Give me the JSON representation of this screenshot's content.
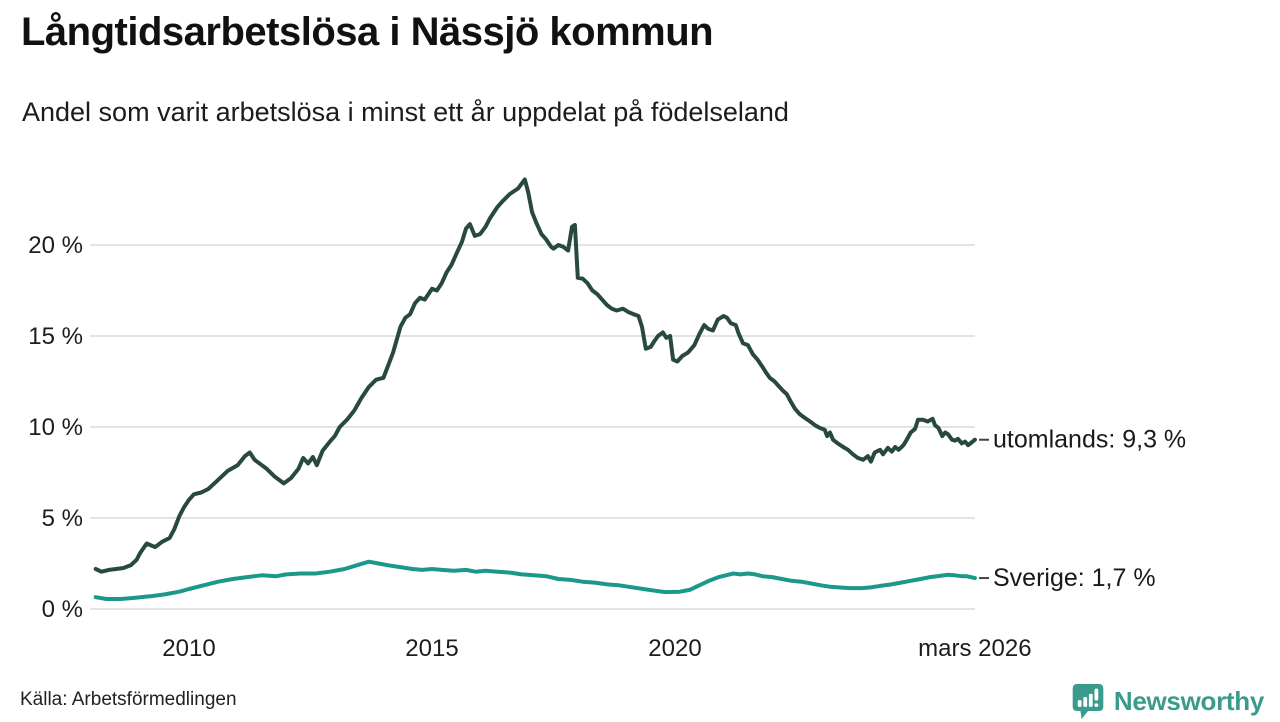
{
  "header": {
    "title": "Långtidsarbetslösa i Nässjö kommun",
    "subtitle": "Andel som varit arbetslösa i minst ett år uppdelat på födelseland"
  },
  "footer": {
    "source": "Källa: Arbetsförmedlingen",
    "brand": "Newsworthy"
  },
  "colors": {
    "utomlands_line": "#284a3e",
    "sverige_line": "#1a998b",
    "gridline": "#e3e3e3",
    "axis_text": "#1d1d1d",
    "label_text": "#1a1a1a",
    "connector": "#444444",
    "brand_teal": "#3a9a8b"
  },
  "chart_data": {
    "type": "line",
    "title": "Långtidsarbetslösa i Nässjö kommun",
    "subtitle": "Andel som varit arbetslösa i minst ett år uppdelat på födelseland",
    "xlabel": "",
    "ylabel": "",
    "grid": true,
    "legend_position": "end-of-line-labels",
    "x_axis": {
      "range": [
        2008.07,
        2026.17
      ],
      "ticks": [
        {
          "label": "2010",
          "year": 2010
        },
        {
          "label": "2015",
          "year": 2015
        },
        {
          "label": "2020",
          "year": 2020
        },
        {
          "label": "mars 2026",
          "year": 2026.17
        }
      ]
    },
    "y_axis": {
      "range": [
        0,
        24
      ],
      "ticks": [
        {
          "label": "0 %",
          "value": 0
        },
        {
          "label": "5 %",
          "value": 5
        },
        {
          "label": "10 %",
          "value": 10
        },
        {
          "label": "15 %",
          "value": 15
        },
        {
          "label": "20 %",
          "value": 20
        }
      ]
    },
    "series": [
      {
        "name": "utomlands",
        "end_label": "utomlands: 9,3 %",
        "end_value": 9.3,
        "color": "#284a3e",
        "points": [
          [
            2008.08,
            2.2
          ],
          [
            2008.2,
            2.05
          ],
          [
            2008.35,
            2.15
          ],
          [
            2008.5,
            2.2
          ],
          [
            2008.65,
            2.25
          ],
          [
            2008.8,
            2.4
          ],
          [
            2008.92,
            2.7
          ],
          [
            2009.0,
            3.1
          ],
          [
            2009.13,
            3.6
          ],
          [
            2009.3,
            3.4
          ],
          [
            2009.45,
            3.7
          ],
          [
            2009.6,
            3.9
          ],
          [
            2009.7,
            4.4
          ],
          [
            2009.8,
            5.1
          ],
          [
            2009.9,
            5.6
          ],
          [
            2010.0,
            6.0
          ],
          [
            2010.1,
            6.3
          ],
          [
            2010.25,
            6.4
          ],
          [
            2010.4,
            6.6
          ],
          [
            2010.6,
            7.1
          ],
          [
            2010.8,
            7.6
          ],
          [
            2011.0,
            7.9
          ],
          [
            2011.15,
            8.4
          ],
          [
            2011.25,
            8.6
          ],
          [
            2011.35,
            8.2
          ],
          [
            2011.5,
            7.9
          ],
          [
            2011.6,
            7.7
          ],
          [
            2011.75,
            7.3
          ],
          [
            2011.95,
            6.9
          ],
          [
            2012.1,
            7.2
          ],
          [
            2012.25,
            7.7
          ],
          [
            2012.35,
            8.3
          ],
          [
            2012.45,
            8.0
          ],
          [
            2012.55,
            8.35
          ],
          [
            2012.63,
            7.9
          ],
          [
            2012.75,
            8.7
          ],
          [
            2012.9,
            9.2
          ],
          [
            2013.0,
            9.5
          ],
          [
            2013.1,
            10.0
          ],
          [
            2013.25,
            10.4
          ],
          [
            2013.4,
            10.9
          ],
          [
            2013.55,
            11.6
          ],
          [
            2013.7,
            12.2
          ],
          [
            2013.85,
            12.6
          ],
          [
            2014.0,
            12.7
          ],
          [
            2014.1,
            13.4
          ],
          [
            2014.2,
            14.1
          ],
          [
            2014.35,
            15.5
          ],
          [
            2014.45,
            16.0
          ],
          [
            2014.55,
            16.2
          ],
          [
            2014.65,
            16.8
          ],
          [
            2014.75,
            17.1
          ],
          [
            2014.85,
            17.0
          ],
          [
            2015.0,
            17.6
          ],
          [
            2015.1,
            17.5
          ],
          [
            2015.2,
            17.9
          ],
          [
            2015.3,
            18.5
          ],
          [
            2015.4,
            18.9
          ],
          [
            2015.5,
            19.5
          ],
          [
            2015.62,
            20.2
          ],
          [
            2015.7,
            20.9
          ],
          [
            2015.78,
            21.15
          ],
          [
            2015.88,
            20.5
          ],
          [
            2015.99,
            20.6
          ],
          [
            2016.1,
            21.0
          ],
          [
            2016.2,
            21.5
          ],
          [
            2016.35,
            22.1
          ],
          [
            2016.45,
            22.4
          ],
          [
            2016.6,
            22.8
          ],
          [
            2016.77,
            23.1
          ],
          [
            2016.91,
            23.6
          ],
          [
            2016.98,
            22.9
          ],
          [
            2017.06,
            21.8
          ],
          [
            2017.15,
            21.2
          ],
          [
            2017.25,
            20.6
          ],
          [
            2017.35,
            20.3
          ],
          [
            2017.45,
            19.9
          ],
          [
            2017.5,
            19.8
          ],
          [
            2017.6,
            20.0
          ],
          [
            2017.7,
            19.9
          ],
          [
            2017.8,
            19.7
          ],
          [
            2017.88,
            21.0
          ],
          [
            2017.94,
            21.1
          ],
          [
            2018.0,
            18.2
          ],
          [
            2018.1,
            18.15
          ],
          [
            2018.2,
            17.9
          ],
          [
            2018.3,
            17.5
          ],
          [
            2018.4,
            17.3
          ],
          [
            2018.5,
            17.0
          ],
          [
            2018.6,
            16.7
          ],
          [
            2018.7,
            16.5
          ],
          [
            2018.8,
            16.4
          ],
          [
            2018.93,
            16.5
          ],
          [
            2019.05,
            16.3
          ],
          [
            2019.15,
            16.2
          ],
          [
            2019.25,
            16.1
          ],
          [
            2019.32,
            15.5
          ],
          [
            2019.4,
            14.3
          ],
          [
            2019.5,
            14.4
          ],
          [
            2019.57,
            14.7
          ],
          [
            2019.65,
            15.0
          ],
          [
            2019.75,
            15.2
          ],
          [
            2019.82,
            14.9
          ],
          [
            2019.9,
            15.0
          ],
          [
            2019.96,
            13.7
          ],
          [
            2020.05,
            13.6
          ],
          [
            2020.15,
            13.9
          ],
          [
            2020.27,
            14.1
          ],
          [
            2020.4,
            14.5
          ],
          [
            2020.5,
            15.1
          ],
          [
            2020.6,
            15.6
          ],
          [
            2020.68,
            15.4
          ],
          [
            2020.78,
            15.3
          ],
          [
            2020.88,
            15.9
          ],
          [
            2021.0,
            16.1
          ],
          [
            2021.07,
            16.0
          ],
          [
            2021.15,
            15.7
          ],
          [
            2021.25,
            15.6
          ],
          [
            2021.3,
            15.2
          ],
          [
            2021.4,
            14.6
          ],
          [
            2021.5,
            14.5
          ],
          [
            2021.6,
            14.0
          ],
          [
            2021.7,
            13.7
          ],
          [
            2021.8,
            13.3
          ],
          [
            2021.87,
            13.0
          ],
          [
            2021.95,
            12.7
          ],
          [
            2022.05,
            12.5
          ],
          [
            2022.15,
            12.2
          ],
          [
            2022.22,
            12.0
          ],
          [
            2022.3,
            11.8
          ],
          [
            2022.38,
            11.4
          ],
          [
            2022.47,
            11.0
          ],
          [
            2022.57,
            10.7
          ],
          [
            2022.67,
            10.5
          ],
          [
            2022.78,
            10.3
          ],
          [
            2022.88,
            10.1
          ],
          [
            2022.98,
            9.95
          ],
          [
            2023.08,
            9.85
          ],
          [
            2023.13,
            9.5
          ],
          [
            2023.19,
            9.7
          ],
          [
            2023.25,
            9.3
          ],
          [
            2023.35,
            9.1
          ],
          [
            2023.46,
            8.9
          ],
          [
            2023.56,
            8.75
          ],
          [
            2023.66,
            8.5
          ],
          [
            2023.76,
            8.3
          ],
          [
            2023.87,
            8.2
          ],
          [
            2023.97,
            8.4
          ],
          [
            2024.03,
            8.1
          ],
          [
            2024.11,
            8.6
          ],
          [
            2024.22,
            8.75
          ],
          [
            2024.28,
            8.5
          ],
          [
            2024.38,
            8.85
          ],
          [
            2024.46,
            8.65
          ],
          [
            2024.53,
            8.9
          ],
          [
            2024.6,
            8.75
          ],
          [
            2024.7,
            9.0
          ],
          [
            2024.77,
            9.3
          ],
          [
            2024.85,
            9.7
          ],
          [
            2024.94,
            9.9
          ],
          [
            2025.0,
            10.4
          ],
          [
            2025.1,
            10.4
          ],
          [
            2025.2,
            10.3
          ],
          [
            2025.3,
            10.45
          ],
          [
            2025.35,
            10.1
          ],
          [
            2025.42,
            9.95
          ],
          [
            2025.5,
            9.5
          ],
          [
            2025.56,
            9.7
          ],
          [
            2025.62,
            9.6
          ],
          [
            2025.7,
            9.3
          ],
          [
            2025.76,
            9.25
          ],
          [
            2025.82,
            9.35
          ],
          [
            2025.9,
            9.1
          ],
          [
            2025.97,
            9.2
          ],
          [
            2026.03,
            9.0
          ],
          [
            2026.1,
            9.15
          ],
          [
            2026.17,
            9.3
          ]
        ]
      },
      {
        "name": "Sverige",
        "end_label": "Sverige: 1,7 %",
        "end_value": 1.7,
        "color": "#1a998b",
        "points": [
          [
            2008.08,
            0.65
          ],
          [
            2008.3,
            0.55
          ],
          [
            2008.6,
            0.55
          ],
          [
            2008.9,
            0.62
          ],
          [
            2009.2,
            0.7
          ],
          [
            2009.5,
            0.8
          ],
          [
            2009.8,
            0.95
          ],
          [
            2010.0,
            1.1
          ],
          [
            2010.3,
            1.3
          ],
          [
            2010.6,
            1.5
          ],
          [
            2010.9,
            1.65
          ],
          [
            2011.2,
            1.75
          ],
          [
            2011.5,
            1.85
          ],
          [
            2011.8,
            1.8
          ],
          [
            2012.0,
            1.9
          ],
          [
            2012.3,
            1.95
          ],
          [
            2012.6,
            1.95
          ],
          [
            2012.9,
            2.05
          ],
          [
            2013.2,
            2.2
          ],
          [
            2013.45,
            2.4
          ],
          [
            2013.7,
            2.6
          ],
          [
            2013.9,
            2.5
          ],
          [
            2014.1,
            2.4
          ],
          [
            2014.35,
            2.3
          ],
          [
            2014.6,
            2.2
          ],
          [
            2014.8,
            2.15
          ],
          [
            2015.0,
            2.2
          ],
          [
            2015.2,
            2.15
          ],
          [
            2015.45,
            2.1
          ],
          [
            2015.7,
            2.15
          ],
          [
            2015.9,
            2.05
          ],
          [
            2016.1,
            2.1
          ],
          [
            2016.35,
            2.05
          ],
          [
            2016.6,
            2.0
          ],
          [
            2016.85,
            1.9
          ],
          [
            2017.1,
            1.85
          ],
          [
            2017.35,
            1.8
          ],
          [
            2017.6,
            1.65
          ],
          [
            2017.85,
            1.6
          ],
          [
            2018.1,
            1.5
          ],
          [
            2018.35,
            1.45
          ],
          [
            2018.6,
            1.35
          ],
          [
            2018.85,
            1.3
          ],
          [
            2019.1,
            1.2
          ],
          [
            2019.35,
            1.1
          ],
          [
            2019.6,
            1.0
          ],
          [
            2019.8,
            0.93
          ],
          [
            2020.1,
            0.95
          ],
          [
            2020.3,
            1.05
          ],
          [
            2020.5,
            1.3
          ],
          [
            2020.7,
            1.55
          ],
          [
            2020.9,
            1.75
          ],
          [
            2021.05,
            1.85
          ],
          [
            2021.2,
            1.95
          ],
          [
            2021.35,
            1.9
          ],
          [
            2021.5,
            1.95
          ],
          [
            2021.65,
            1.9
          ],
          [
            2021.8,
            1.8
          ],
          [
            2022.0,
            1.75
          ],
          [
            2022.2,
            1.65
          ],
          [
            2022.4,
            1.55
          ],
          [
            2022.6,
            1.5
          ],
          [
            2022.8,
            1.4
          ],
          [
            2023.0,
            1.3
          ],
          [
            2023.2,
            1.22
          ],
          [
            2023.4,
            1.18
          ],
          [
            2023.6,
            1.15
          ],
          [
            2023.85,
            1.15
          ],
          [
            2024.05,
            1.2
          ],
          [
            2024.25,
            1.28
          ],
          [
            2024.45,
            1.35
          ],
          [
            2024.65,
            1.45
          ],
          [
            2024.85,
            1.55
          ],
          [
            2025.05,
            1.65
          ],
          [
            2025.25,
            1.75
          ],
          [
            2025.45,
            1.82
          ],
          [
            2025.6,
            1.88
          ],
          [
            2025.75,
            1.85
          ],
          [
            2025.9,
            1.8
          ],
          [
            2026.0,
            1.8
          ],
          [
            2026.17,
            1.7
          ]
        ]
      }
    ]
  }
}
